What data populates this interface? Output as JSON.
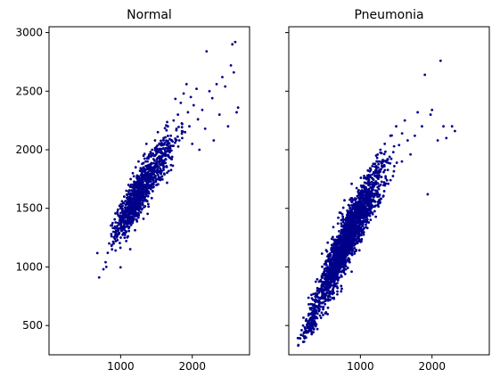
{
  "chart_data": [
    {
      "type": "scatter",
      "title": "Normal",
      "xlabel": "",
      "ylabel": "",
      "xlim": [
        0,
        2800
      ],
      "ylim": [
        250,
        3050
      ],
      "xticks": [
        1000,
        2000
      ],
      "yticks": [
        500,
        1000,
        1500,
        2000,
        2500,
        3000
      ],
      "show_y_tick_labels": true,
      "marker_color": "#00008b",
      "grid": false,
      "points": [
        [
          700,
          910
        ],
        [
          760,
          980
        ],
        [
          790,
          1040
        ],
        [
          800,
          1000
        ],
        [
          820,
          1120
        ],
        [
          840,
          1200
        ],
        [
          870,
          1280
        ],
        [
          880,
          1150
        ],
        [
          900,
          1300
        ],
        [
          920,
          1240
        ],
        [
          930,
          1380
        ],
        [
          950,
          1330
        ],
        [
          960,
          1450
        ],
        [
          980,
          1290
        ],
        [
          990,
          1400
        ],
        [
          1000,
          1500
        ],
        [
          1010,
          1350
        ],
        [
          1020,
          1560
        ],
        [
          1040,
          1450
        ],
        [
          1050,
          1600
        ],
        [
          1060,
          1420
        ],
        [
          1070,
          1530
        ],
        [
          1080,
          1650
        ],
        [
          1090,
          1480
        ],
        [
          1100,
          1580
        ],
        [
          1110,
          1700
        ],
        [
          1120,
          1520
        ],
        [
          1130,
          1620
        ],
        [
          1140,
          1750
        ],
        [
          1150,
          1560
        ],
        [
          1160,
          1680
        ],
        [
          1170,
          1800
        ],
        [
          1180,
          1600
        ],
        [
          1190,
          1720
        ],
        [
          1200,
          1650
        ],
        [
          1210,
          1850
        ],
        [
          1220,
          1700
        ],
        [
          1230,
          1780
        ],
        [
          1240,
          1620
        ],
        [
          1250,
          1900
        ],
        [
          1260,
          1740
        ],
        [
          1270,
          1820
        ],
        [
          1280,
          1680
        ],
        [
          1300,
          1880
        ],
        [
          1310,
          1760
        ],
        [
          1320,
          1950
        ],
        [
          1330,
          1820
        ],
        [
          1340,
          1700
        ],
        [
          1350,
          1900
        ],
        [
          1360,
          2050
        ],
        [
          1380,
          1840
        ],
        [
          1400,
          1960
        ],
        [
          1420,
          1880
        ],
        [
          1440,
          2000
        ],
        [
          1460,
          1920
        ],
        [
          1480,
          2080
        ],
        [
          1500,
          1980
        ],
        [
          1520,
          2150
        ],
        [
          1540,
          1900
        ],
        [
          1560,
          2050
        ],
        [
          1580,
          1950
        ],
        [
          1600,
          2100
        ],
        [
          1620,
          2000
        ],
        [
          1640,
          1860
        ],
        [
          1660,
          2200
        ],
        [
          1680,
          2020
        ],
        [
          1700,
          2120
        ],
        [
          1720,
          1940
        ],
        [
          1740,
          2250
        ],
        [
          1760,
          2060
        ],
        [
          1780,
          2180
        ],
        [
          1800,
          2300
        ],
        [
          1820,
          2080
        ],
        [
          1840,
          2400
        ],
        [
          1860,
          2220
        ],
        [
          1880,
          2480
        ],
        [
          1900,
          2150
        ],
        [
          1920,
          2560
        ],
        [
          1940,
          2320
        ],
        [
          1960,
          2200
        ],
        [
          1980,
          2450
        ],
        [
          2000,
          2050
        ],
        [
          2020,
          2380
        ],
        [
          2060,
          2520
        ],
        [
          2080,
          2260
        ],
        [
          2100,
          2000
        ],
        [
          2140,
          2340
        ],
        [
          2180,
          2180
        ],
        [
          2200,
          2840
        ],
        [
          2240,
          2500
        ],
        [
          2280,
          2440
        ],
        [
          2300,
          2080
        ],
        [
          2340,
          2560
        ],
        [
          2380,
          2300
        ],
        [
          2420,
          2620
        ],
        [
          2460,
          2540
        ],
        [
          2500,
          2200
        ],
        [
          2540,
          2720
        ],
        [
          2560,
          2900
        ],
        [
          2580,
          2660
        ],
        [
          2600,
          2920
        ],
        [
          2620,
          2320
        ],
        [
          2640,
          2360
        ]
      ],
      "clusters": [
        {
          "cx": 1200,
          "cy": 1560,
          "sx": 130,
          "sy": 150,
          "corr": 0.8,
          "n": 700
        },
        {
          "cx": 1500,
          "cy": 1860,
          "sx": 160,
          "sy": 170,
          "corr": 0.8,
          "n": 300
        }
      ]
    },
    {
      "type": "scatter",
      "title": "Pneumonia",
      "xlabel": "",
      "ylabel": "",
      "xlim": [
        0,
        2800
      ],
      "ylim": [
        250,
        3050
      ],
      "xticks": [
        1000,
        2000
      ],
      "yticks": [
        500,
        1000,
        1500,
        2000,
        2500,
        3000
      ],
      "show_y_tick_labels": false,
      "marker_color": "#00008b",
      "grid": false,
      "points": [
        [
          160,
          390
        ],
        [
          170,
          420
        ],
        [
          180,
          460
        ],
        [
          200,
          500
        ],
        [
          220,
          440
        ],
        [
          240,
          540
        ],
        [
          260,
          480
        ],
        [
          280,
          600
        ],
        [
          300,
          560
        ],
        [
          320,
          650
        ],
        [
          340,
          720
        ],
        [
          360,
          680
        ],
        [
          380,
          760
        ],
        [
          400,
          820
        ],
        [
          420,
          780
        ],
        [
          440,
          880
        ],
        [
          460,
          840
        ],
        [
          480,
          940
        ],
        [
          500,
          900
        ],
        [
          520,
          990
        ],
        [
          540,
          1050
        ],
        [
          560,
          960
        ],
        [
          580,
          1100
        ],
        [
          600,
          1020
        ],
        [
          620,
          1150
        ],
        [
          640,
          1080
        ],
        [
          660,
          1200
        ],
        [
          680,
          1120
        ],
        [
          700,
          1260
        ],
        [
          720,
          1180
        ],
        [
          740,
          1300
        ],
        [
          760,
          1220
        ],
        [
          780,
          1360
        ],
        [
          800,
          1280
        ],
        [
          820,
          1420
        ],
        [
          840,
          1340
        ],
        [
          860,
          1480
        ],
        [
          880,
          1400
        ],
        [
          900,
          1520
        ],
        [
          920,
          1440
        ],
        [
          940,
          1580
        ],
        [
          960,
          1500
        ],
        [
          980,
          1620
        ],
        [
          1000,
          1540
        ],
        [
          1020,
          1680
        ],
        [
          1040,
          1580
        ],
        [
          1060,
          1720
        ],
        [
          1080,
          1640
        ],
        [
          1100,
          1780
        ],
        [
          1120,
          1700
        ],
        [
          1140,
          1840
        ],
        [
          1160,
          1760
        ],
        [
          1180,
          1880
        ],
        [
          1200,
          1800
        ],
        [
          1220,
          1950
        ],
        [
          1240,
          1680
        ],
        [
          1260,
          1900
        ],
        [
          1280,
          2000
        ],
        [
          1300,
          1860
        ],
        [
          1340,
          2050
        ],
        [
          1380,
          1920
        ],
        [
          1420,
          2120
        ],
        [
          1460,
          1980
        ],
        [
          1500,
          2200
        ],
        [
          1540,
          2040
        ],
        [
          1580,
          1900
        ],
        [
          1620,
          2250
        ],
        [
          1660,
          2080
        ],
        [
          1700,
          1960
        ],
        [
          1760,
          2120
        ],
        [
          1800,
          2320
        ],
        [
          1860,
          2200
        ],
        [
          1900,
          2640
        ],
        [
          1940,
          1620
        ],
        [
          1980,
          2300
        ],
        [
          2000,
          2340
        ],
        [
          2080,
          2080
        ],
        [
          2120,
          2760
        ],
        [
          2160,
          2200
        ],
        [
          2200,
          2100
        ],
        [
          2280,
          2200
        ],
        [
          2320,
          2160
        ]
      ],
      "clusters": [
        {
          "cx": 750,
          "cy": 1150,
          "sx": 170,
          "sy": 230,
          "corr": 0.88,
          "n": 1500
        },
        {
          "cx": 1050,
          "cy": 1520,
          "sx": 170,
          "sy": 200,
          "corr": 0.82,
          "n": 600
        },
        {
          "cx": 330,
          "cy": 560,
          "sx": 80,
          "sy": 110,
          "corr": 0.85,
          "n": 150
        }
      ]
    }
  ]
}
